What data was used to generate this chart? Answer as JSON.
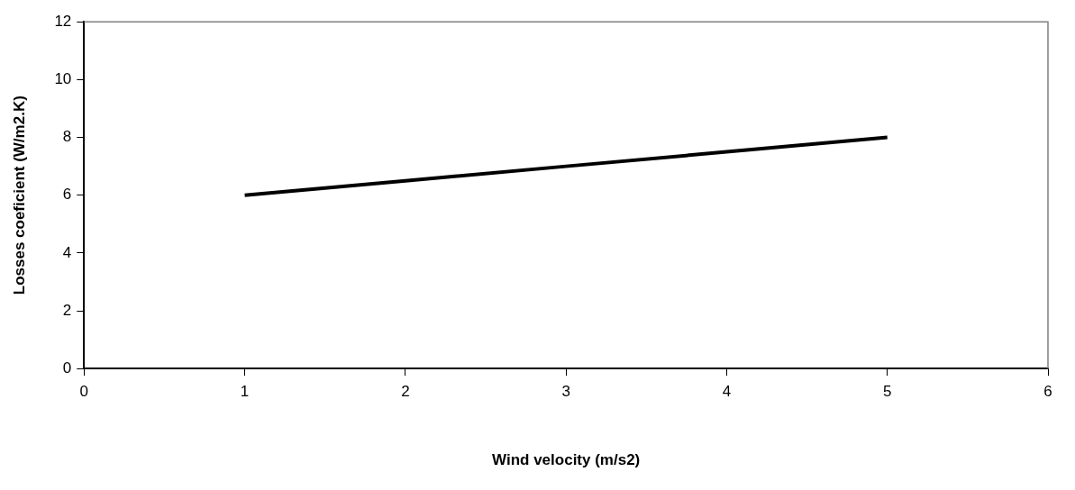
{
  "chart_data": {
    "type": "line",
    "xlabel": "Wind velocity (m/s2)",
    "ylabel": "Losses coeficient (W/m2.K)",
    "x": [
      1,
      2,
      3,
      4,
      5
    ],
    "series": [
      {
        "color": "#000000",
        "values": [
          6,
          6.5,
          7,
          7.5,
          8
        ]
      }
    ],
    "xlim": [
      0,
      6
    ],
    "xticks": [
      0,
      1,
      2,
      3,
      4,
      5,
      6
    ],
    "ylim": [
      0,
      12
    ],
    "yticks": [
      0,
      2,
      4,
      6,
      8,
      10,
      12
    ],
    "grid": false,
    "legend": false,
    "marker": "none",
    "line_style": "solid"
  }
}
